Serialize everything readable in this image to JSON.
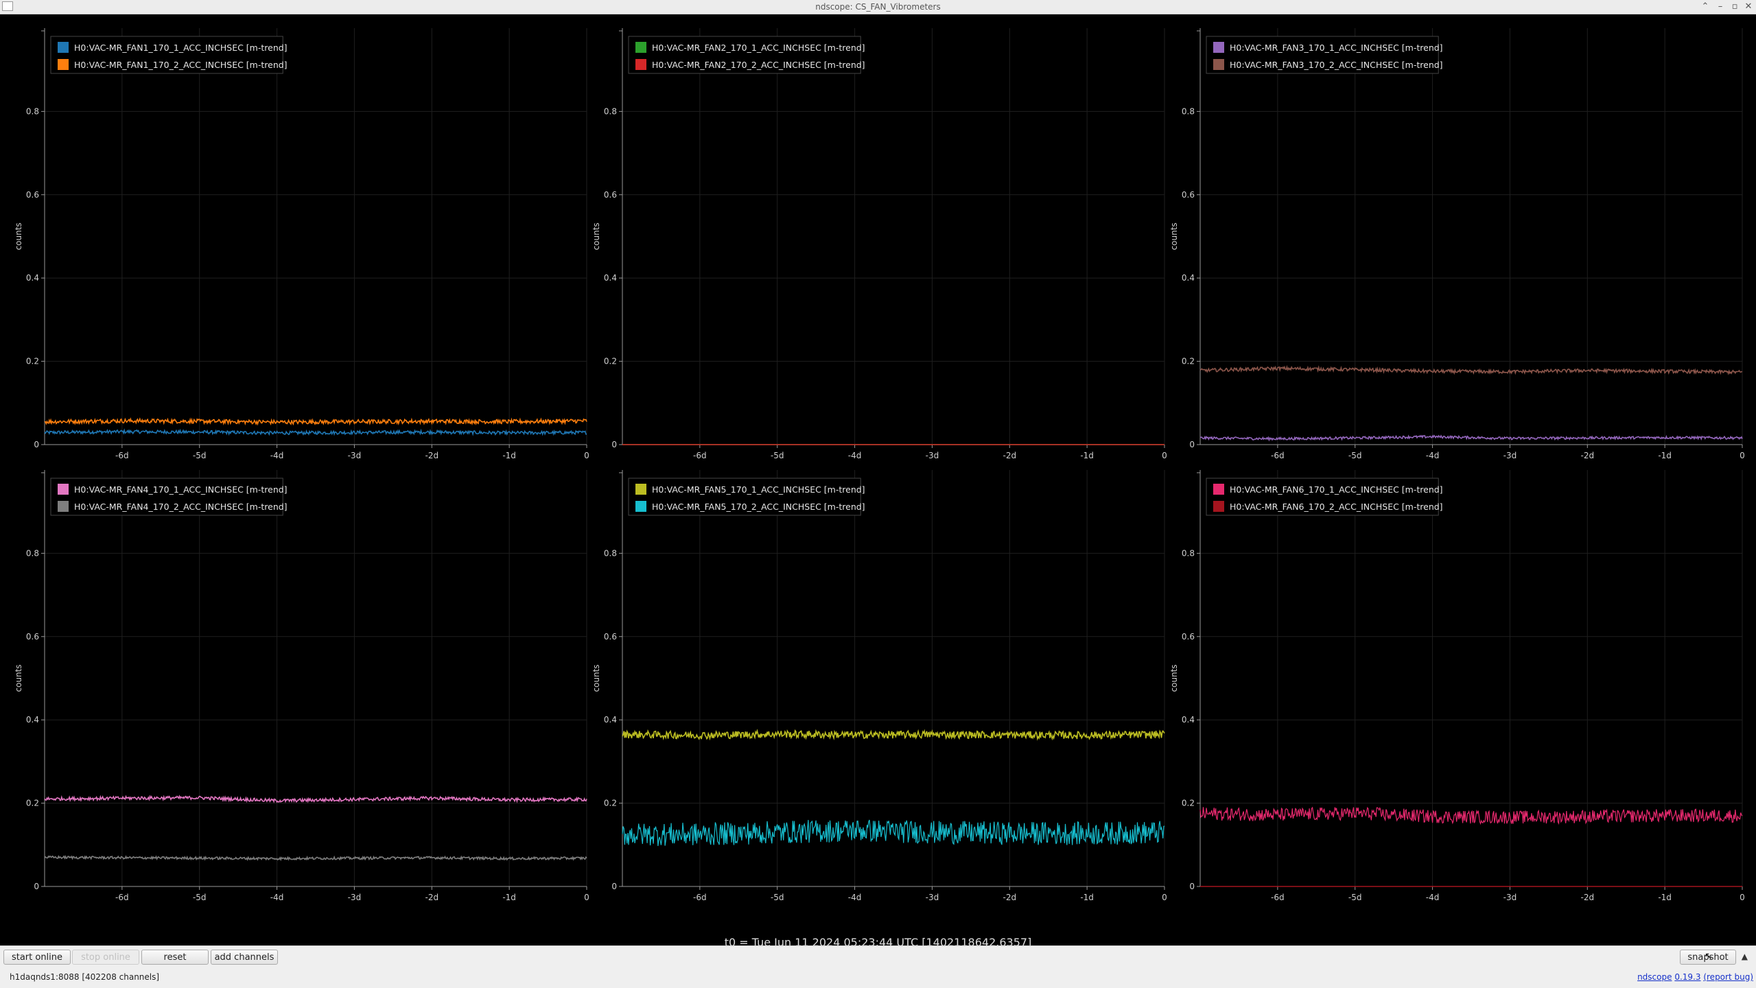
{
  "window": {
    "title": "ndscope: CS_FAN_Vibrometers",
    "controls": [
      "⌃",
      "–",
      "▫",
      "✕"
    ]
  },
  "t0_label": "t0 = Tue Jun 11 2024 05:23:44 UTC [1402118642.6357]",
  "toolbar": {
    "start_online": "start online",
    "stop_online": "stop online",
    "reset": "reset",
    "add_channels": "add channels",
    "snapshot": "snapshot",
    "expand_icon": "▲"
  },
  "status": {
    "server": "h1daqnds1:8088  [402208 channels]",
    "app_name": "ndscope",
    "version": "0.19.3",
    "report_bug": "(report bug)"
  },
  "chart_data": [
    {
      "type": "line",
      "ylabel": "counts",
      "ylim": [
        0,
        1.0
      ],
      "xlim": [
        -7,
        0
      ],
      "x_ticks": [
        "-6d",
        "-5d",
        "-4d",
        "-3d",
        "-2d",
        "-1d",
        "0"
      ],
      "y_ticks": [
        "0",
        "0.2",
        "0.4",
        "0.6",
        "0.8"
      ],
      "legend_position": "top-left",
      "grid": true,
      "series": [
        {
          "name": "H0:VAC-MR_FAN1_170_1_ACC_INCHSEC [m-trend]",
          "color": "#1f77b4",
          "values": [
            0.029,
            0.031,
            0.03,
            0.028,
            0.029,
            0.03,
            0.028,
            0.029
          ],
          "noise": 0.004
        },
        {
          "name": "H0:VAC-MR_FAN1_170_2_ACC_INCHSEC [m-trend]",
          "color": "#ff7f0e",
          "values": [
            0.055,
            0.057,
            0.056,
            0.054,
            0.055,
            0.056,
            0.055,
            0.057
          ],
          "noise": 0.005
        }
      ]
    },
    {
      "type": "line",
      "ylabel": "counts",
      "ylim": [
        0,
        1.0
      ],
      "xlim": [
        -7,
        0
      ],
      "x_ticks": [
        "-6d",
        "-5d",
        "-4d",
        "-3d",
        "-2d",
        "-1d",
        "0"
      ],
      "y_ticks": [
        "0",
        "0.2",
        "0.4",
        "0.6",
        "0.8"
      ],
      "legend_position": "top-left",
      "grid": true,
      "series": [
        {
          "name": "H0:VAC-MR_FAN2_170_1_ACC_INCHSEC [m-trend]",
          "color": "#2ca02c",
          "values": [
            0.0,
            0.0
          ],
          "noise": 0
        },
        {
          "name": "H0:VAC-MR_FAN2_170_2_ACC_INCHSEC [m-trend]",
          "color": "#d62728",
          "values": [
            0.0,
            0.0
          ],
          "noise": 0
        }
      ]
    },
    {
      "type": "line",
      "ylabel": "counts",
      "ylim": [
        0,
        1.0
      ],
      "xlim": [
        -7,
        0
      ],
      "x_ticks": [
        "-6d",
        "-5d",
        "-4d",
        "-3d",
        "-2d",
        "-1d",
        "0"
      ],
      "y_ticks": [
        "0",
        "0.2",
        "0.4",
        "0.6",
        "0.8"
      ],
      "legend_position": "top-left",
      "grid": true,
      "series": [
        {
          "name": "H0:VAC-MR_FAN3_170_1_ACC_INCHSEC [m-trend]",
          "color": "#9467bd",
          "values": [
            0.016,
            0.014,
            0.016,
            0.019,
            0.015,
            0.016,
            0.017,
            0.016
          ],
          "noise": 0.003
        },
        {
          "name": "H0:VAC-MR_FAN3_170_2_ACC_INCHSEC [m-trend]",
          "color": "#8c564b",
          "values": [
            0.178,
            0.183,
            0.18,
            0.176,
            0.175,
            0.178,
            0.176,
            0.174
          ],
          "noise": 0.004
        }
      ]
    },
    {
      "type": "line",
      "ylabel": "counts",
      "ylim": [
        0,
        1.0
      ],
      "xlim": [
        -7,
        0
      ],
      "x_ticks": [
        "-6d",
        "-5d",
        "-4d",
        "-3d",
        "-2d",
        "-1d",
        "0"
      ],
      "y_ticks": [
        "0",
        "0.2",
        "0.4",
        "0.6",
        "0.8"
      ],
      "legend_position": "top-left",
      "grid": true,
      "series": [
        {
          "name": "H0:VAC-MR_FAN4_170_1_ACC_INCHSEC [m-trend]",
          "color": "#e377c2",
          "values": [
            0.21,
            0.212,
            0.213,
            0.206,
            0.209,
            0.212,
            0.208,
            0.209
          ],
          "noise": 0.004
        },
        {
          "name": "H0:VAC-MR_FAN4_170_2_ACC_INCHSEC [m-trend]",
          "color": "#7f7f7f",
          "values": [
            0.07,
            0.069,
            0.068,
            0.067,
            0.068,
            0.069,
            0.067,
            0.068
          ],
          "noise": 0.003
        }
      ]
    },
    {
      "type": "line",
      "ylabel": "counts",
      "ylim": [
        0,
        1.0
      ],
      "xlim": [
        -7,
        0
      ],
      "x_ticks": [
        "-6d",
        "-5d",
        "-4d",
        "-3d",
        "-2d",
        "-1d",
        "0"
      ],
      "y_ticks": [
        "0",
        "0.2",
        "0.4",
        "0.6",
        "0.8"
      ],
      "legend_position": "top-left",
      "grid": true,
      "series": [
        {
          "name": "H0:VAC-MR_FAN5_170_1_ACC_INCHSEC [m-trend]",
          "color": "#bcbd22",
          "values": [
            0.365,
            0.363,
            0.366,
            0.364,
            0.365,
            0.364,
            0.363,
            0.365
          ],
          "noise": 0.009
        },
        {
          "name": "H0:VAC-MR_FAN5_170_2_ACC_INCHSEC [m-trend]",
          "color": "#17becf",
          "values": [
            0.125,
            0.125,
            0.13,
            0.135,
            0.13,
            0.128,
            0.127,
            0.13
          ],
          "noise": 0.028
        }
      ]
    },
    {
      "type": "line",
      "ylabel": "counts",
      "ylim": [
        0,
        1.0
      ],
      "xlim": [
        -7,
        0
      ],
      "x_ticks": [
        "-6d",
        "-5d",
        "-4d",
        "-3d",
        "-2d",
        "-1d",
        "0"
      ],
      "y_ticks": [
        "0",
        "0.2",
        "0.4",
        "0.6",
        "0.8"
      ],
      "legend_position": "top-left",
      "grid": true,
      "series": [
        {
          "name": "H0:VAC-MR_FAN6_170_1_ACC_INCHSEC [m-trend]",
          "color": "#e7296e",
          "values": [
            0.175,
            0.172,
            0.176,
            0.168,
            0.166,
            0.168,
            0.17,
            0.17
          ],
          "noise": 0.016
        },
        {
          "name": "H0:VAC-MR_FAN6_170_2_ACC_INCHSEC [m-trend]",
          "color": "#a4141e",
          "values": [
            0.0,
            0.0
          ],
          "noise": 0
        }
      ]
    }
  ]
}
